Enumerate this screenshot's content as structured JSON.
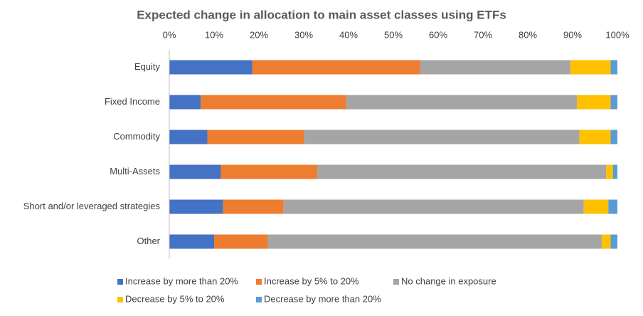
{
  "chart_data": {
    "type": "stacked-barh",
    "title": "Expected change in allocation to main asset classes using ETFs",
    "categories": [
      "Equity",
      "Fixed Income",
      "Commodity",
      "Multi-Assets",
      "Short and/or leveraged strategies",
      "Other"
    ],
    "series": [
      {
        "name": "Increase by more than 20%",
        "color": "#4472c4",
        "values": [
          18.5,
          7,
          8.5,
          11.5,
          12,
          10
        ]
      },
      {
        "name": "Increase by 5% to 20%",
        "color": "#ed7d31",
        "values": [
          37.5,
          32.5,
          21.5,
          21.5,
          13.5,
          12
        ]
      },
      {
        "name": "No change in exposure",
        "color": "#a5a5a5",
        "values": [
          33.5,
          51.5,
          61.5,
          64.5,
          67,
          74.5
        ]
      },
      {
        "name": "Decrease by 5% to 20%",
        "color": "#ffc000",
        "values": [
          9,
          7.5,
          7,
          1.5,
          5.5,
          2
        ]
      },
      {
        "name": "Decrease by more than 20%",
        "color": "#5b9bd5",
        "values": [
          1.5,
          1.5,
          1.5,
          1,
          2,
          1.5
        ]
      }
    ],
    "xlim": [
      0,
      100
    ],
    "xticks": [
      {
        "value": 0,
        "label": "0%"
      },
      {
        "value": 10,
        "label": "10%"
      },
      {
        "value": 20,
        "label": "20%"
      },
      {
        "value": 30,
        "label": "30%"
      },
      {
        "value": 40,
        "label": "40%"
      },
      {
        "value": 50,
        "label": "50%"
      },
      {
        "value": 60,
        "label": "60%"
      },
      {
        "value": 70,
        "label": "70%"
      },
      {
        "value": 80,
        "label": "80%"
      },
      {
        "value": 90,
        "label": "90%"
      },
      {
        "value": 100,
        "label": "100%"
      }
    ],
    "grid": false,
    "legend": "bottom"
  }
}
